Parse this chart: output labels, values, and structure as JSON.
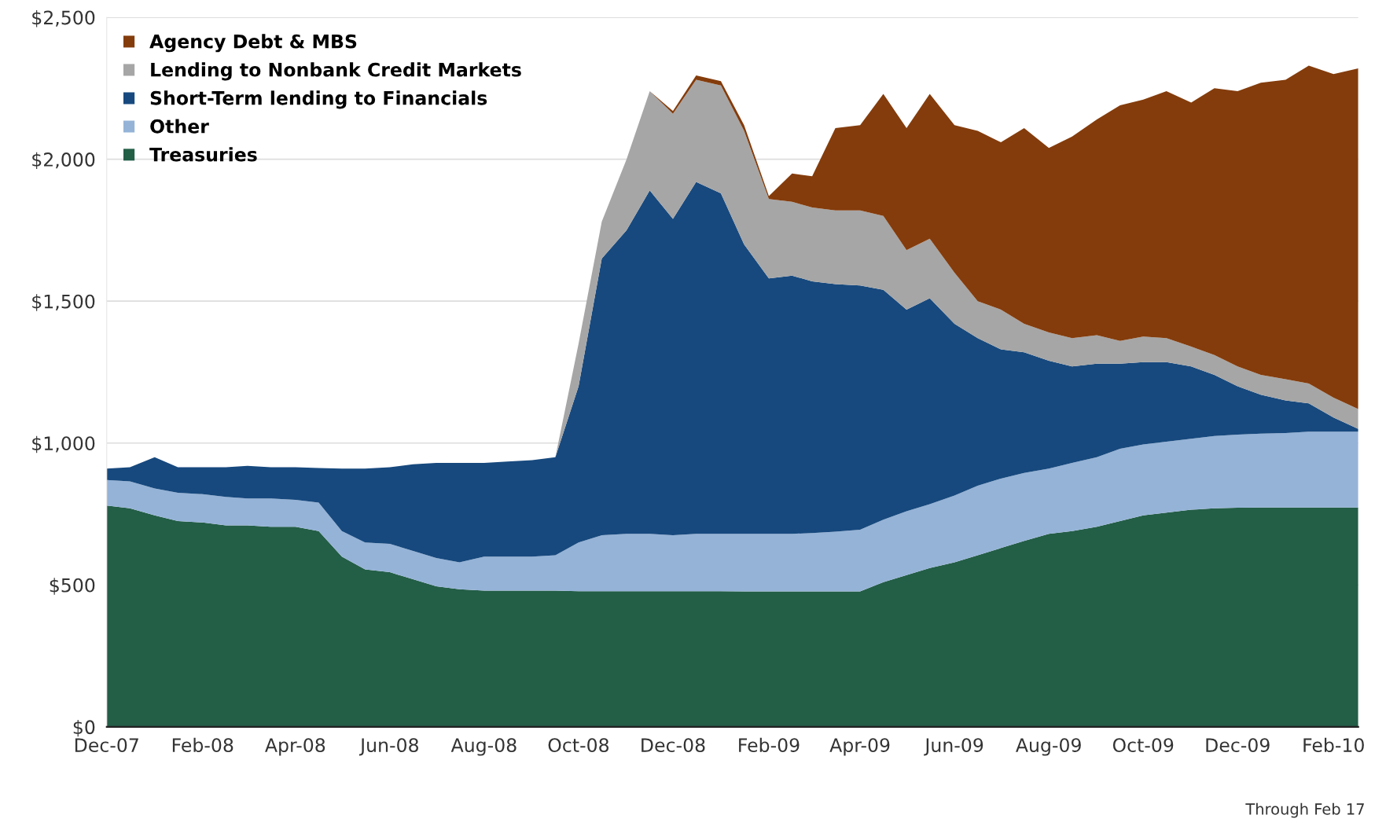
{
  "chart_data": {
    "type": "area",
    "stacked": true,
    "legend": "top left",
    "grid": "y",
    "x": [
      "2007-12-01",
      "2007-12-16",
      "2008-01-01",
      "2008-01-16",
      "2008-02-01",
      "2008-02-16",
      "2008-03-01",
      "2008-03-16",
      "2008-04-01",
      "2008-04-16",
      "2008-05-01",
      "2008-05-16",
      "2008-06-01",
      "2008-06-16",
      "2008-07-01",
      "2008-07-16",
      "2008-08-01",
      "2008-08-16",
      "2008-09-01",
      "2008-09-16",
      "2008-10-01",
      "2008-10-16",
      "2008-11-01",
      "2008-11-16",
      "2008-12-01",
      "2008-12-16",
      "2009-01-01",
      "2009-01-16",
      "2009-02-01",
      "2009-02-16",
      "2009-03-01",
      "2009-03-16",
      "2009-04-01",
      "2009-04-16",
      "2009-05-01",
      "2009-05-16",
      "2009-06-01",
      "2009-06-16",
      "2009-07-01",
      "2009-07-16",
      "2009-08-01",
      "2009-08-16",
      "2009-09-01",
      "2009-09-16",
      "2009-10-01",
      "2009-10-16",
      "2009-11-01",
      "2009-11-16",
      "2009-12-01",
      "2009-12-16",
      "2010-01-01",
      "2010-01-16",
      "2010-02-01",
      "2010-02-17"
    ],
    "xlim": [
      "2007-12-01",
      "2010-02-17"
    ],
    "xticks": [
      {
        "value": "2007-12-01",
        "label": "Dec-07"
      },
      {
        "value": "2008-02-01",
        "label": "Feb-08"
      },
      {
        "value": "2008-04-01",
        "label": "Apr-08"
      },
      {
        "value": "2008-06-01",
        "label": "Jun-08"
      },
      {
        "value": "2008-08-01",
        "label": "Aug-08"
      },
      {
        "value": "2008-10-01",
        "label": "Oct-08"
      },
      {
        "value": "2008-12-01",
        "label": "Dec-08"
      },
      {
        "value": "2009-02-01",
        "label": "Feb-09"
      },
      {
        "value": "2009-04-01",
        "label": "Apr-09"
      },
      {
        "value": "2009-06-01",
        "label": "Jun-09"
      },
      {
        "value": "2009-08-01",
        "label": "Aug-09"
      },
      {
        "value": "2009-10-01",
        "label": "Oct-09"
      },
      {
        "value": "2009-12-01",
        "label": "Dec-09"
      },
      {
        "value": "2010-02-01",
        "label": "Feb-10"
      }
    ],
    "ylim": [
      0,
      2500
    ],
    "yticks": [
      {
        "value": 0,
        "label": "$0"
      },
      {
        "value": 500,
        "label": "$500"
      },
      {
        "value": 1000,
        "label": "$1,000"
      },
      {
        "value": 1500,
        "label": "$1,500"
      },
      {
        "value": 2000,
        "label": "$2,000"
      },
      {
        "value": 2500,
        "label": "$2,500"
      }
    ],
    "annotations": [
      "Through Feb 17"
    ],
    "series": [
      {
        "name": "Treasuries",
        "color": "#235e47",
        "values": [
          780,
          770,
          745,
          725,
          720,
          710,
          710,
          705,
          705,
          690,
          600,
          555,
          545,
          520,
          495,
          485,
          480,
          480,
          480,
          480,
          478,
          478,
          478,
          478,
          478,
          478,
          478,
          477,
          477,
          477,
          477,
          477,
          477,
          510,
          535,
          560,
          580,
          605,
          630,
          655,
          680,
          690,
          705,
          725,
          745,
          755,
          765,
          770,
          772,
          773,
          773,
          773,
          773,
          773
        ]
      },
      {
        "name": "Other",
        "color": "#95b3d7",
        "values": [
          90,
          95,
          95,
          100,
          100,
          100,
          95,
          100,
          95,
          100,
          90,
          95,
          100,
          100,
          100,
          95,
          120,
          120,
          120,
          125,
          172,
          197,
          202,
          202,
          197,
          202,
          202,
          203,
          203,
          203,
          206,
          211,
          218,
          220,
          225,
          225,
          235,
          245,
          245,
          240,
          230,
          240,
          245,
          255,
          250,
          250,
          250,
          255,
          258,
          260,
          262,
          267,
          267,
          267
        ]
      },
      {
        "name": "Short-Term lending to Financials",
        "color": "#17497e",
        "values": [
          40,
          50,
          110,
          90,
          95,
          105,
          115,
          110,
          115,
          122,
          220,
          260,
          270,
          305,
          335,
          350,
          330,
          335,
          340,
          345,
          550,
          975,
          1070,
          1210,
          1115,
          1240,
          1200,
          1020,
          900,
          910,
          887,
          872,
          860,
          810,
          710,
          725,
          605,
          520,
          455,
          425,
          380,
          340,
          330,
          300,
          290,
          280,
          255,
          215,
          170,
          137,
          115,
          100,
          50,
          10
        ]
      },
      {
        "name": "Lending to Nonbank Credit Markets",
        "color": "#a6a6a6",
        "values": [
          0,
          0,
          0,
          0,
          0,
          0,
          0,
          0,
          0,
          0,
          0,
          0,
          0,
          0,
          0,
          0,
          0,
          0,
          0,
          0,
          150,
          130,
          250,
          350,
          370,
          360,
          380,
          400,
          280,
          260,
          260,
          260,
          265,
          260,
          210,
          210,
          180,
          130,
          140,
          100,
          100,
          100,
          100,
          80,
          90,
          85,
          70,
          70,
          70,
          70,
          75,
          70,
          70,
          70
        ]
      },
      {
        "name": "Agency Debt & MBS",
        "color": "#843c0c",
        "values": [
          0,
          0,
          0,
          0,
          0,
          0,
          0,
          0,
          0,
          0,
          0,
          0,
          0,
          0,
          0,
          0,
          0,
          0,
          0,
          0,
          0,
          0,
          0,
          0,
          10,
          15,
          15,
          20,
          10,
          100,
          110,
          290,
          300,
          430,
          430,
          510,
          520,
          600,
          590,
          690,
          650,
          710,
          760,
          830,
          835,
          870,
          860,
          940,
          970,
          1030,
          1055,
          1120,
          1140,
          1200
        ]
      }
    ]
  }
}
